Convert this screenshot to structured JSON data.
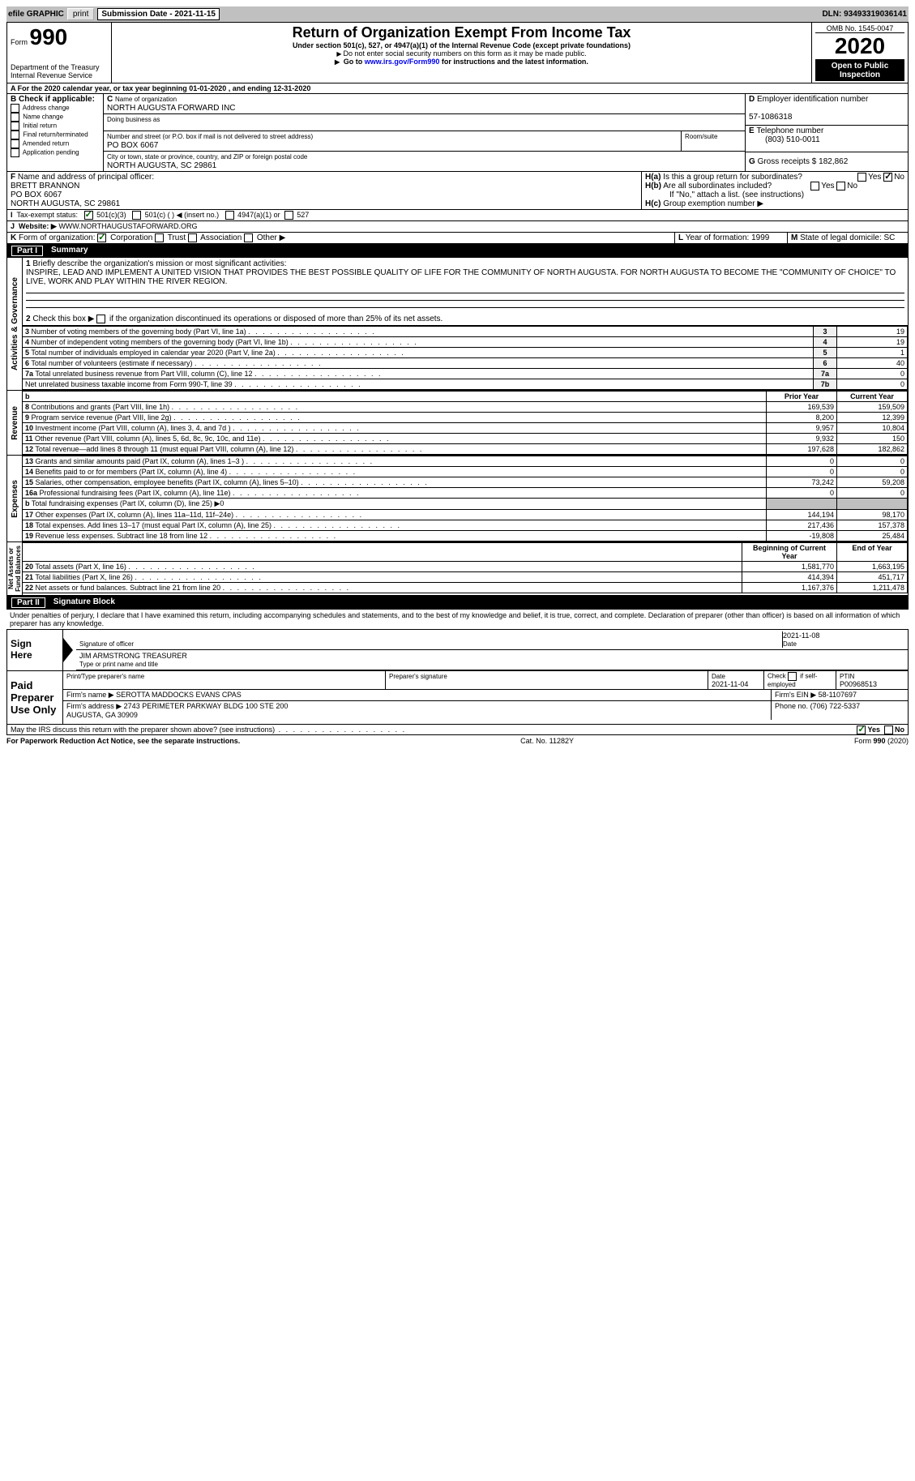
{
  "topbar": {
    "efile": "efile GRAPHIC",
    "print": "print",
    "subdate_label": "Submission Date - ",
    "subdate": "2021-11-15",
    "dln_label": "DLN: ",
    "dln": "93493319036141"
  },
  "header": {
    "form_word": "Form",
    "form_no": "990",
    "dept": "Department of the Treasury\nInternal Revenue Service",
    "title": "Return of Organization Exempt From Income Tax",
    "subtitle": "Under section 501(c), 527, or 4947(a)(1) of the Internal Revenue Code (except private foundations)",
    "note1": "Do not enter social security numbers on this form as it may be made public.",
    "note2_a": "Go to ",
    "note2_link": "www.irs.gov/Form990",
    "note2_b": " for instructions and the latest information.",
    "omb": "OMB No. 1545-0047",
    "year": "2020",
    "open": "Open to Public\nInspection"
  },
  "lineA": "For the 2020 calendar year, or tax year beginning 01-01-2020  , and ending 12-31-2020",
  "boxB": {
    "label": "Check if applicable:",
    "opts": [
      "Address change",
      "Name change",
      "Initial return",
      "Final return/terminated",
      "Amended return",
      "Application pending"
    ]
  },
  "boxC": {
    "name_label": "Name of organization",
    "name": "NORTH AUGUSTA FORWARD INC",
    "dba_label": "Doing business as",
    "addr_label": "Number and street (or P.O. box if mail is not delivered to street address)",
    "addr": "PO BOX 6067",
    "room_label": "Room/suite",
    "city_label": "City or town, state or province, country, and ZIP or foreign postal code",
    "city": "NORTH AUGUSTA, SC  29861"
  },
  "boxD": {
    "label": "Employer identification number",
    "val": "57-1086318"
  },
  "boxE": {
    "label": "Telephone number",
    "val": "(803) 510-0011"
  },
  "boxG": {
    "label": "Gross receipts $",
    "val": "182,862"
  },
  "boxF": {
    "label": "Name and address of principal officer:",
    "name": "BRETT BRANNON",
    "addr1": "PO BOX 6067",
    "addr2": "NORTH AUGUSTA, SC  29861"
  },
  "boxH": {
    "a": "Is this a group return for subordinates?",
    "b": "Are all subordinates included?",
    "bnote": "If \"No,\" attach a list. (see instructions)",
    "c": "Group exemption number ▶",
    "yes": "Yes",
    "no": "No"
  },
  "boxI": {
    "label": "Tax-exempt status:",
    "o1": "501(c)(3)",
    "o2": "501(c) (  ) ◀ (insert no.)",
    "o3": "4947(a)(1) or",
    "o4": "527"
  },
  "boxJ": {
    "label": "Website: ▶",
    "val": "WWW.NORTHAUGUSTAFORWARD.ORG"
  },
  "boxK": {
    "label": "Form of organization:",
    "o1": "Corporation",
    "o2": "Trust",
    "o3": "Association",
    "o4": "Other ▶"
  },
  "boxL": {
    "label": "Year of formation:",
    "val": "1999"
  },
  "boxM": {
    "label": "State of legal domicile:",
    "val": "SC"
  },
  "part1": {
    "label": "Part I",
    "title": "Summary"
  },
  "q1": {
    "label": "Briefly describe the organization's mission or most significant activities:",
    "text": "INSPIRE, LEAD AND IMPLEMENT A UNITED VISION THAT PROVIDES THE BEST POSSIBLE QUALITY OF LIFE FOR THE COMMUNITY OF NORTH AUGUSTA. FOR NORTH AUGUSTA TO BECOME THE \"COMMUNITY OF CHOICE\" TO LIVE, WORK AND PLAY WITHIN THE RIVER REGION."
  },
  "q2": "Check this box ▶       if the organization discontinued its operations or disposed of more than 25% of its net assets.",
  "gov_rows": [
    {
      "n": "3",
      "t": "Number of voting members of the governing body (Part VI, line 1a)",
      "k": "3",
      "v": "19"
    },
    {
      "n": "4",
      "t": "Number of independent voting members of the governing body (Part VI, line 1b)",
      "k": "4",
      "v": "19"
    },
    {
      "n": "5",
      "t": "Total number of individuals employed in calendar year 2020 (Part V, line 2a)",
      "k": "5",
      "v": "1"
    },
    {
      "n": "6",
      "t": "Total number of volunteers (estimate if necessary)",
      "k": "6",
      "v": "40"
    },
    {
      "n": "7a",
      "t": "Total unrelated business revenue from Part VIII, column (C), line 12",
      "k": "7a",
      "v": "0"
    },
    {
      "n": "",
      "t": "Net unrelated business taxable income from Form 990-T, line 39",
      "k": "7b",
      "v": "0"
    }
  ],
  "col_headers": {
    "b": "b",
    "py": "Prior Year",
    "cy": "Current Year"
  },
  "rev_rows": [
    {
      "n": "8",
      "t": "Contributions and grants (Part VIII, line 1h)",
      "py": "169,539",
      "cy": "159,509"
    },
    {
      "n": "9",
      "t": "Program service revenue (Part VIII, line 2g)",
      "py": "8,200",
      "cy": "12,399"
    },
    {
      "n": "10",
      "t": "Investment income (Part VIII, column (A), lines 3, 4, and 7d )",
      "py": "9,957",
      "cy": "10,804"
    },
    {
      "n": "11",
      "t": "Other revenue (Part VIII, column (A), lines 5, 6d, 8c, 9c, 10c, and 11e)",
      "py": "9,932",
      "cy": "150"
    },
    {
      "n": "12",
      "t": "Total revenue—add lines 8 through 11 (must equal Part VIII, column (A), line 12)",
      "py": "197,628",
      "cy": "182,862"
    }
  ],
  "exp_rows": [
    {
      "n": "13",
      "t": "Grants and similar amounts paid (Part IX, column (A), lines 1–3 )",
      "py": "0",
      "cy": "0"
    },
    {
      "n": "14",
      "t": "Benefits paid to or for members (Part IX, column (A), line 4)",
      "py": "0",
      "cy": "0"
    },
    {
      "n": "15",
      "t": "Salaries, other compensation, employee benefits (Part IX, column (A), lines 5–10)",
      "py": "73,242",
      "cy": "59,208"
    },
    {
      "n": "16a",
      "t": "Professional fundraising fees (Part IX, column (A), line 11e)",
      "py": "0",
      "cy": "0"
    },
    {
      "n": "b",
      "t": "Total fundraising expenses (Part IX, column (D), line 25) ▶0",
      "py": "",
      "cy": "",
      "shade": true
    },
    {
      "n": "17",
      "t": "Other expenses (Part IX, column (A), lines 11a–11d, 11f–24e)",
      "py": "144,194",
      "cy": "98,170"
    },
    {
      "n": "18",
      "t": "Total expenses. Add lines 13–17 (must equal Part IX, column (A), line 25)",
      "py": "217,436",
      "cy": "157,378"
    },
    {
      "n": "19",
      "t": "Revenue less expenses. Subtract line 18 from line 12",
      "py": "-19,808",
      "cy": "25,484"
    }
  ],
  "na_headers": {
    "bcy": "Beginning of Current Year",
    "eoy": "End of Year"
  },
  "na_rows": [
    {
      "n": "20",
      "t": "Total assets (Part X, line 16)",
      "py": "1,581,770",
      "cy": "1,663,195"
    },
    {
      "n": "21",
      "t": "Total liabilities (Part X, line 26)",
      "py": "414,394",
      "cy": "451,717"
    },
    {
      "n": "22",
      "t": "Net assets or fund balances. Subtract line 21 from line 20",
      "py": "1,167,376",
      "cy": "1,211,478"
    }
  ],
  "vtabs": {
    "gov": "Activities & Governance",
    "rev": "Revenue",
    "exp": "Expenses",
    "na": "Net Assets or\nFund Balances"
  },
  "part2": {
    "label": "Part II",
    "title": "Signature Block"
  },
  "penalties": "Under penalties of perjury, I declare that I have examined this return, including accompanying schedules and statements, and to the best of my knowledge and belief, it is true, correct, and complete. Declaration of preparer (other than officer) is based on all information of which preparer has any knowledge.",
  "sign": {
    "here": "Sign\nHere",
    "sig_label": "Signature of officer",
    "date_label": "Date",
    "date": "2021-11-08",
    "name": "JIM ARMSTRONG TREASURER",
    "name_label": "Type or print name and title"
  },
  "preparer": {
    "label": "Paid\nPreparer\nUse Only",
    "h1": "Print/Type preparer's name",
    "h2": "Preparer's signature",
    "h3": "Date",
    "date": "2021-11-04",
    "h4": "Check        if self-employed",
    "h5": "PTIN",
    "ptin": "P00968513",
    "firm_label": "Firm's name  ▶",
    "firm": "SEROTTA MADDOCKS EVANS CPAS",
    "ein_label": "Firm's EIN ▶",
    "ein": "58-1107697",
    "addr_label": "Firm's address ▶",
    "addr": "2743 PERIMETER PARKWAY BLDG 100 STE 200\nAUGUSTA, GA  30909",
    "phone_label": "Phone no.",
    "phone": "(706) 722-5337"
  },
  "discuss": "May the IRS discuss this return with the preparer shown above? (see instructions)",
  "footer": {
    "pra": "For Paperwork Reduction Act Notice, see the separate instructions.",
    "cat": "Cat. No. 11282Y",
    "form": "Form 990 (2020)"
  }
}
